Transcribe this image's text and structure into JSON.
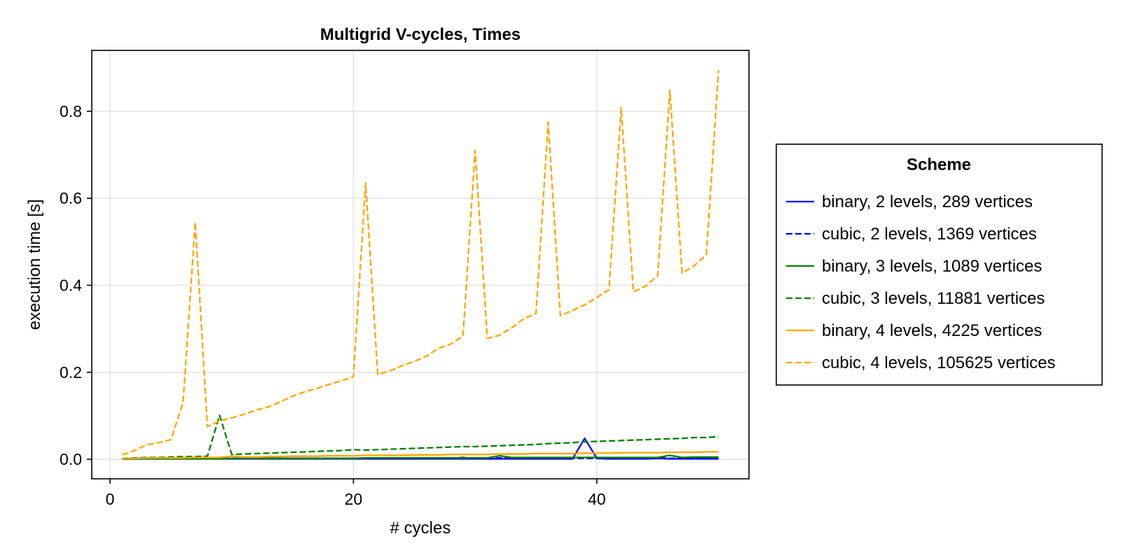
{
  "chart_data": {
    "type": "line",
    "title": "Multigrid V-cycles, Times",
    "xlabel": "# cycles",
    "ylabel": "execution time [s]",
    "xlim": [
      -1.5,
      52.5
    ],
    "ylim": [
      -0.045,
      0.94
    ],
    "xticks": [
      0,
      20,
      40
    ],
    "yticks": [
      0.0,
      0.2,
      0.4,
      0.6,
      0.8
    ],
    "ytick_labels": [
      "0.0",
      "0.2",
      "0.4",
      "0.6",
      "0.8"
    ],
    "grid": true,
    "legend_title": "Scheme",
    "legend_placement": "right",
    "x": [
      1,
      2,
      3,
      4,
      5,
      6,
      7,
      8,
      9,
      10,
      11,
      12,
      13,
      14,
      15,
      16,
      17,
      18,
      19,
      20,
      21,
      22,
      23,
      24,
      25,
      26,
      27,
      28,
      29,
      30,
      31,
      32,
      33,
      34,
      35,
      36,
      37,
      38,
      39,
      40,
      41,
      42,
      43,
      44,
      45,
      46,
      47,
      48,
      49,
      50
    ],
    "series": [
      {
        "name": "binary, 2 levels, 289 vertices",
        "color": "#0000ff",
        "dash": "solid",
        "values": [
          0.001,
          0.001,
          0.001,
          0.001,
          0.001,
          0.001,
          0.001,
          0.001,
          0.001,
          0.001,
          0.001,
          0.001,
          0.001,
          0.001,
          0.001,
          0.001,
          0.001,
          0.001,
          0.001,
          0.001,
          0.001,
          0.001,
          0.001,
          0.001,
          0.001,
          0.001,
          0.001,
          0.001,
          0.001,
          0.001,
          0.001,
          0.001,
          0.001,
          0.001,
          0.001,
          0.001,
          0.001,
          0.001,
          0.048,
          0.002,
          0.001,
          0.001,
          0.001,
          0.001,
          0.002,
          0.001,
          0.001,
          0.001,
          0.001,
          0.001
        ]
      },
      {
        "name": "cubic, 2 levels, 1369 vertices",
        "color": "#0000ff",
        "dash": "dashed",
        "values": [
          0.002,
          0.002,
          0.002,
          0.002,
          0.002,
          0.002,
          0.002,
          0.002,
          0.002,
          0.002,
          0.002,
          0.002,
          0.002,
          0.002,
          0.002,
          0.002,
          0.002,
          0.002,
          0.002,
          0.002,
          0.002,
          0.002,
          0.002,
          0.002,
          0.002,
          0.002,
          0.002,
          0.002,
          0.004,
          0.002,
          0.002,
          0.003,
          0.002,
          0.002,
          0.002,
          0.002,
          0.002,
          0.002,
          0.002,
          0.002,
          0.002,
          0.002,
          0.002,
          0.002,
          0.004,
          0.002,
          0.002,
          0.004,
          0.002,
          0.002
        ]
      },
      {
        "name": "binary, 3 levels, 1089 vertices",
        "color": "#008000",
        "dash": "solid",
        "values": [
          0.001,
          0.001,
          0.001,
          0.001,
          0.001,
          0.001,
          0.001,
          0.001,
          0.001,
          0.002,
          0.002,
          0.002,
          0.002,
          0.002,
          0.002,
          0.002,
          0.002,
          0.002,
          0.002,
          0.002,
          0.003,
          0.003,
          0.003,
          0.003,
          0.003,
          0.003,
          0.003,
          0.003,
          0.003,
          0.003,
          0.003,
          0.008,
          0.004,
          0.004,
          0.004,
          0.004,
          0.004,
          0.004,
          0.004,
          0.004,
          0.004,
          0.004,
          0.004,
          0.004,
          0.004,
          0.009,
          0.004,
          0.005,
          0.005,
          0.005
        ]
      },
      {
        "name": "cubic, 3 levels, 11881 vertices",
        "color": "#008000",
        "dash": "dashed",
        "values": [
          0.002,
          0.003,
          0.004,
          0.004,
          0.005,
          0.006,
          0.006,
          0.007,
          0.101,
          0.011,
          0.012,
          0.013,
          0.014,
          0.015,
          0.016,
          0.017,
          0.018,
          0.019,
          0.02,
          0.022,
          0.021,
          0.022,
          0.023,
          0.024,
          0.025,
          0.026,
          0.027,
          0.028,
          0.029,
          0.029,
          0.03,
          0.031,
          0.032,
          0.033,
          0.034,
          0.036,
          0.037,
          0.038,
          0.04,
          0.041,
          0.042,
          0.043,
          0.044,
          0.045,
          0.046,
          0.047,
          0.048,
          0.05,
          0.05,
          0.052
        ]
      },
      {
        "name": "binary, 4 levels, 4225 vertices",
        "color": "#ffa500",
        "dash": "solid",
        "values": [
          0.002,
          0.002,
          0.003,
          0.003,
          0.003,
          0.003,
          0.004,
          0.004,
          0.004,
          0.007,
          0.005,
          0.005,
          0.006,
          0.006,
          0.007,
          0.007,
          0.007,
          0.008,
          0.008,
          0.008,
          0.009,
          0.009,
          0.009,
          0.009,
          0.01,
          0.01,
          0.01,
          0.011,
          0.011,
          0.011,
          0.011,
          0.012,
          0.012,
          0.012,
          0.013,
          0.013,
          0.013,
          0.013,
          0.014,
          0.014,
          0.014,
          0.015,
          0.015,
          0.015,
          0.015,
          0.016,
          0.016,
          0.016,
          0.017,
          0.017
        ]
      },
      {
        "name": "cubic, 4 levels, 105625 vertices",
        "color": "#ffa500",
        "dash": "dashed",
        "values": [
          0.01,
          0.02,
          0.033,
          0.038,
          0.045,
          0.13,
          0.545,
          0.075,
          0.088,
          0.095,
          0.103,
          0.113,
          0.12,
          0.132,
          0.145,
          0.155,
          0.163,
          0.172,
          0.18,
          0.19,
          0.635,
          0.195,
          0.203,
          0.215,
          0.225,
          0.237,
          0.255,
          0.265,
          0.283,
          0.71,
          0.278,
          0.285,
          0.302,
          0.323,
          0.335,
          0.775,
          0.33,
          0.342,
          0.355,
          0.372,
          0.39,
          0.808,
          0.385,
          0.398,
          0.422,
          0.848,
          0.428,
          0.445,
          0.47,
          0.895
        ]
      }
    ]
  }
}
